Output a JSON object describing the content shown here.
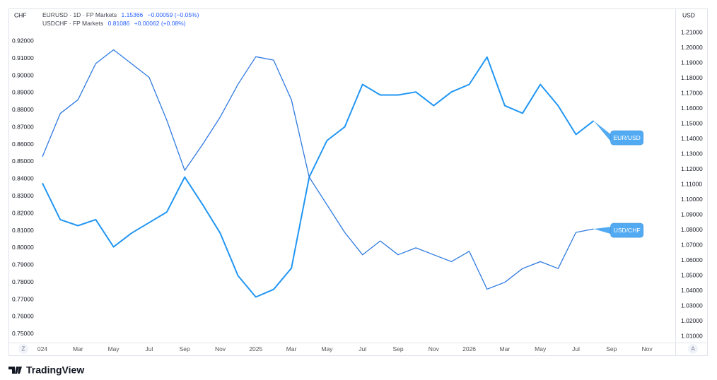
{
  "chart_data": {
    "type": "line",
    "legend": [
      {
        "text": "EURUSD · 1D · FP Markets",
        "price": "1.15366",
        "change": "−0.00059 (−0.05%)"
      },
      {
        "text": "USDCHF · FP Markets",
        "price": "0.81086",
        "change": "+0.00062 (+0.08%)"
      }
    ],
    "y_unit": "CHF",
    "y2_unit": "USD",
    "categories": [
      "024",
      null,
      "Mar",
      null,
      "May",
      null,
      "Jul",
      null,
      "Sep",
      null,
      "Nov",
      null,
      "2025",
      null,
      "Mar",
      null,
      "May",
      null,
      "Jul",
      null,
      "Sep",
      null,
      "Nov",
      null,
      "2026",
      null,
      "Mar",
      null,
      "May",
      null,
      "Jul",
      null,
      "Sep",
      null,
      "Nov"
    ],
    "series": [
      {
        "name": "EURUSD",
        "tag": "EUR/USD",
        "axis": "y2",
        "color": "#2196f3",
        "values": [
          1.111,
          1.087,
          1.083,
          1.087,
          1.069,
          1.078,
          1.085,
          1.092,
          1.115,
          1.097,
          1.078,
          1.05,
          1.036,
          1.041,
          1.055,
          1.115,
          1.139,
          1.148,
          1.176,
          1.169,
          1.169,
          1.171,
          1.162,
          1.171,
          1.176,
          1.194,
          1.162,
          1.157,
          1.176,
          1.162,
          1.143,
          1.152,
          null,
          null,
          null
        ]
      },
      {
        "name": "USDCHF",
        "tag": "USD/CHF",
        "color": "#2f7ae0",
        "values": [
          0.853,
          0.878,
          0.886,
          0.907,
          0.915,
          0.907,
          0.899,
          0.874,
          0.845,
          0.86,
          0.876,
          0.895,
          0.911,
          0.909,
          0.886,
          0.841,
          0.825,
          0.809,
          0.796,
          0.804,
          0.796,
          0.8,
          0.796,
          0.792,
          0.798,
          0.776,
          0.78,
          0.788,
          0.792,
          0.788,
          0.809,
          0.811,
          null,
          null,
          null
        ]
      }
    ],
    "ylim": [
      0.745,
      0.939
    ],
    "yticks": [
      {
        "value": 0.75,
        "label": "0.75000"
      },
      {
        "value": 0.76,
        "label": "0.76000"
      },
      {
        "value": 0.77,
        "label": "0.77000"
      },
      {
        "value": 0.78,
        "label": "0.78000"
      },
      {
        "value": 0.79,
        "label": "0.79000"
      },
      {
        "value": 0.8,
        "label": "0.80000"
      },
      {
        "value": 0.81,
        "label": "0.81000"
      },
      {
        "value": 0.82,
        "label": "0.82000"
      },
      {
        "value": 0.83,
        "label": "0.83000"
      },
      {
        "value": 0.84,
        "label": "0.84000"
      },
      {
        "value": 0.85,
        "label": "0.85000"
      },
      {
        "value": 0.86,
        "label": "0.86000"
      },
      {
        "value": 0.87,
        "label": "0.87000"
      },
      {
        "value": 0.88,
        "label": "0.88000"
      },
      {
        "value": 0.89,
        "label": "0.89000"
      },
      {
        "value": 0.9,
        "label": "0.90000"
      },
      {
        "value": 0.91,
        "label": "0.91000"
      },
      {
        "value": 0.92,
        "label": "0.92000"
      }
    ],
    "y2lim": [
      1.006,
      1.226
    ],
    "y2ticks": [
      {
        "value": 1.01,
        "label": "1.01000"
      },
      {
        "value": 1.02,
        "label": "1.02000"
      },
      {
        "value": 1.03,
        "label": "1.03000"
      },
      {
        "value": 1.04,
        "label": "1.04000"
      },
      {
        "value": 1.05,
        "label": "1.05000"
      },
      {
        "value": 1.06,
        "label": "1.06000"
      },
      {
        "value": 1.07,
        "label": "1.07000"
      },
      {
        "value": 1.08,
        "label": "1.08000"
      },
      {
        "value": 1.09,
        "label": "1.09000"
      },
      {
        "value": 1.1,
        "label": "1.10000"
      },
      {
        "value": 1.11,
        "label": "1.11000"
      },
      {
        "value": 1.12,
        "label": "1.12000"
      },
      {
        "value": 1.13,
        "label": "1.13000"
      },
      {
        "value": 1.14,
        "label": "1.14000"
      },
      {
        "value": 1.15,
        "label": "1.15000"
      },
      {
        "value": 1.16,
        "label": "1.16000"
      },
      {
        "value": 1.17,
        "label": "1.17000"
      },
      {
        "value": 1.18,
        "label": "1.18000"
      },
      {
        "value": 1.19,
        "label": "1.19000"
      },
      {
        "value": 1.2,
        "label": "1.20000"
      },
      {
        "value": 1.21,
        "label": "1.21000"
      }
    ],
    "grid": false,
    "left_button": "Z",
    "right_button": "A",
    "brand": "TradingView"
  }
}
